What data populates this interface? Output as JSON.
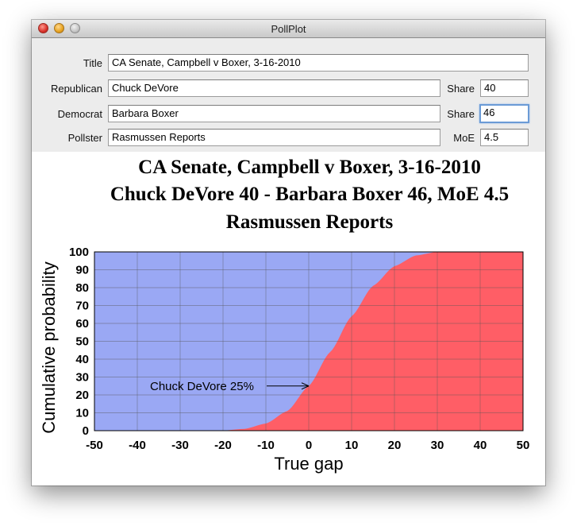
{
  "window": {
    "title": "PollPlot"
  },
  "form": {
    "title_label": "Title",
    "title_value": "CA Senate, Campbell v Boxer, 3-16-2010",
    "republican_label": "Republican",
    "republican_value": "Chuck DeVore",
    "democrat_label": "Democrat",
    "democrat_value": "Barbara Boxer",
    "pollster_label": "Pollster",
    "pollster_value": "Rasmussen Reports",
    "share_label_1": "Share",
    "share_value_1": "40",
    "share_label_2": "Share",
    "share_value_2": "46",
    "moe_label": "MoE",
    "moe_value": "4.5"
  },
  "chart_data": {
    "type": "area",
    "title_lines": [
      "CA Senate, Campbell v Boxer, 3-16-2010",
      "Chuck DeVore 40 - Barbara Boxer 46, MoE 4.5",
      "Rasmussen Reports"
    ],
    "xlabel": "True gap",
    "ylabel": "Cumulative probability",
    "xlim": [
      -50,
      50
    ],
    "ylim": [
      0,
      100
    ],
    "xticks": [
      -50,
      -40,
      -30,
      -20,
      -10,
      0,
      10,
      20,
      30,
      40,
      50
    ],
    "yticks": [
      0,
      10,
      20,
      30,
      40,
      50,
      60,
      70,
      80,
      90,
      100
    ],
    "grid": true,
    "colors": {
      "upper": "#9aa8f4",
      "lower": "#ff5e66"
    },
    "x": [
      -50,
      -30,
      -20,
      -15,
      -10,
      -5,
      0,
      5,
      10,
      15,
      20,
      25,
      30,
      40,
      50
    ],
    "values": [
      0,
      0,
      0.1,
      1,
      4,
      11,
      25,
      44,
      64,
      81,
      92,
      98,
      100,
      100,
      100
    ],
    "annotation": {
      "text": "Chuck DeVore 25%",
      "x": 0,
      "y": 25
    }
  }
}
